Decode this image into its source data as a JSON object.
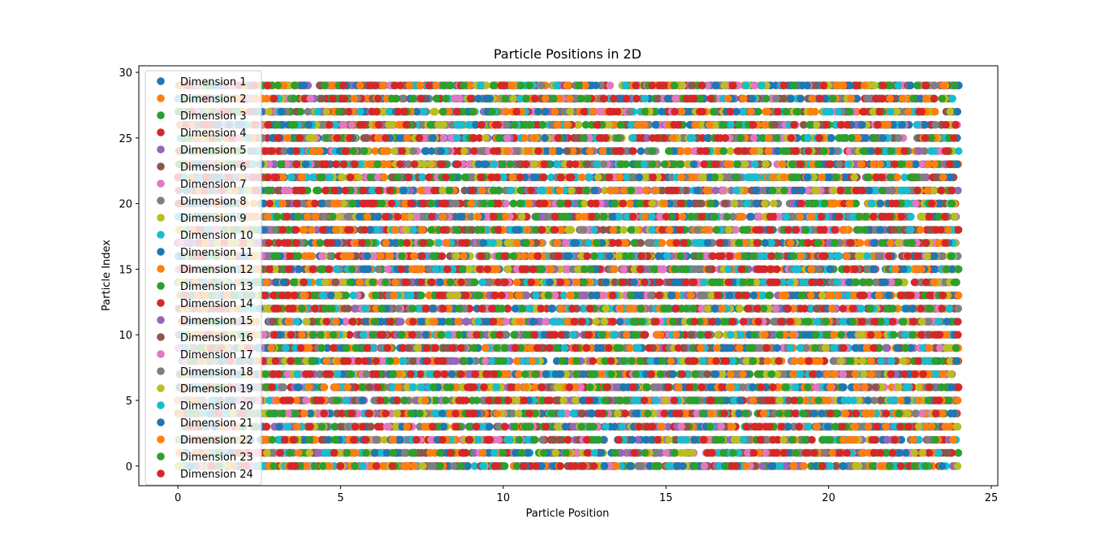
{
  "chart_data": {
    "type": "scatter",
    "title": "Particle Positions in 2D",
    "xlabel": "Particle Position",
    "ylabel": "Particle Index",
    "xlim": [
      -1.2,
      25.2
    ],
    "ylim": [
      -1.5,
      30.5
    ],
    "xticks": [
      0,
      5,
      10,
      15,
      20,
      25
    ],
    "yticks": [
      0,
      5,
      10,
      15,
      20,
      25,
      30
    ],
    "grid": false,
    "legend_position": "top-left",
    "particle_indices": [
      0,
      29
    ],
    "position_range": [
      0,
      24
    ],
    "series": [
      {
        "name": "Dimension 1",
        "color": "#1f77b4"
      },
      {
        "name": "Dimension 2",
        "color": "#ff7f0e"
      },
      {
        "name": "Dimension 3",
        "color": "#2ca02c"
      },
      {
        "name": "Dimension 4",
        "color": "#d62728"
      },
      {
        "name": "Dimension 5",
        "color": "#9467bd"
      },
      {
        "name": "Dimension 6",
        "color": "#8c564b"
      },
      {
        "name": "Dimension 7",
        "color": "#e377c2"
      },
      {
        "name": "Dimension 8",
        "color": "#7f7f7f"
      },
      {
        "name": "Dimension 9",
        "color": "#bcbd22"
      },
      {
        "name": "Dimension 10",
        "color": "#17becf"
      },
      {
        "name": "Dimension 11",
        "color": "#1f77b4"
      },
      {
        "name": "Dimension 12",
        "color": "#ff7f0e"
      },
      {
        "name": "Dimension 13",
        "color": "#2ca02c"
      },
      {
        "name": "Dimension 14",
        "color": "#d62728"
      },
      {
        "name": "Dimension 15",
        "color": "#9467bd"
      },
      {
        "name": "Dimension 16",
        "color": "#8c564b"
      },
      {
        "name": "Dimension 17",
        "color": "#e377c2"
      },
      {
        "name": "Dimension 18",
        "color": "#7f7f7f"
      },
      {
        "name": "Dimension 19",
        "color": "#bcbd22"
      },
      {
        "name": "Dimension 20",
        "color": "#17becf"
      },
      {
        "name": "Dimension 21",
        "color": "#1f77b4"
      },
      {
        "name": "Dimension 22",
        "color": "#ff7f0e"
      },
      {
        "name": "Dimension 23",
        "color": "#2ca02c"
      },
      {
        "name": "Dimension 24",
        "color": "#d62728"
      }
    ]
  }
}
